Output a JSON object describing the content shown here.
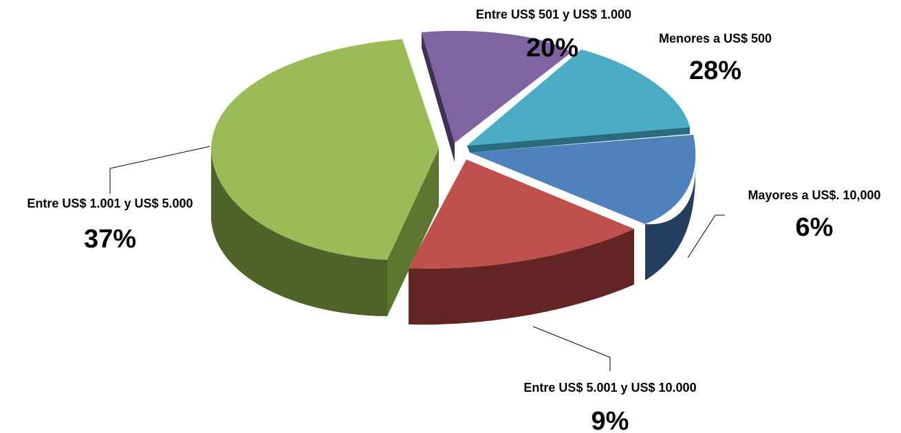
{
  "chart_data": {
    "type": "pie",
    "three_d": true,
    "exploded": true,
    "slices": [
      {
        "label": "Menores a US$ 500",
        "percent_label": "28%",
        "value": 28,
        "top_color": "#4BACC6",
        "side_color": "#2B6B7F"
      },
      {
        "label": "Mayores a US$. 10,000",
        "percent_label": "6%",
        "value": 6,
        "top_color": "#4F81BD",
        "side_color": "#243F60"
      },
      {
        "label": "Entre US$ 5.001 y US$ 10.000",
        "percent_label": "9%",
        "value": 9,
        "top_color": "#C0504D",
        "side_color": "#632523"
      },
      {
        "label": "Entre US$ 1.001 y US$ 5.000",
        "percent_label": "37%",
        "value": 37,
        "top_color": "#9BBB59",
        "side_color": "#4F6228"
      },
      {
        "label": "Entre US$ 501 y US$ 1.000",
        "percent_label": "20%",
        "value": 20,
        "top_color": "#8064A2",
        "side_color": "#3F3151"
      }
    ]
  }
}
